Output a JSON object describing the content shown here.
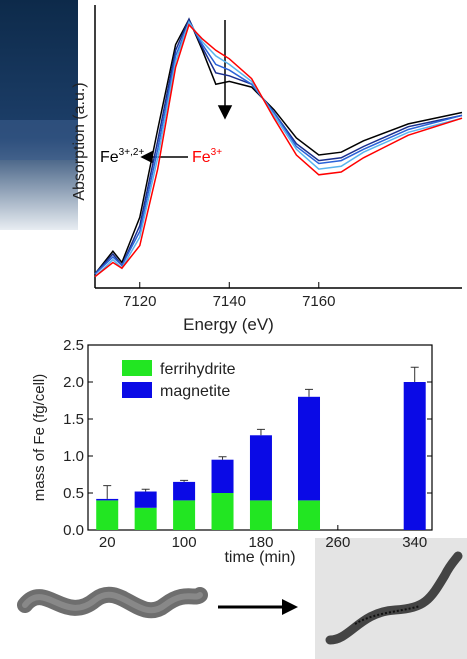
{
  "chart_data": [
    {
      "type": "line",
      "x_label": "Energy (eV)",
      "y_label": "Absorption (a.u.)",
      "x": [
        7110,
        7114,
        7116,
        7120,
        7124,
        7128,
        7131,
        7134,
        7137,
        7140,
        7145,
        7150,
        7155,
        7160,
        7165,
        7170,
        7180,
        7192
      ],
      "series": [
        {
          "color": "#000000",
          "values": [
            0.05,
            0.13,
            0.09,
            0.25,
            0.56,
            0.86,
            0.95,
            0.84,
            0.72,
            0.73,
            0.71,
            0.63,
            0.53,
            0.47,
            0.48,
            0.52,
            0.58,
            0.62
          ]
        },
        {
          "color": "#1a2f8f",
          "values": [
            0.05,
            0.12,
            0.08,
            0.22,
            0.52,
            0.84,
            0.95,
            0.85,
            0.76,
            0.75,
            0.72,
            0.62,
            0.51,
            0.45,
            0.46,
            0.5,
            0.57,
            0.61
          ]
        },
        {
          "color": "#2a62d8",
          "values": [
            0.05,
            0.11,
            0.08,
            0.2,
            0.49,
            0.82,
            0.94,
            0.86,
            0.79,
            0.77,
            0.72,
            0.62,
            0.5,
            0.44,
            0.45,
            0.49,
            0.56,
            0.61
          ]
        },
        {
          "color": "#5ab4ee",
          "values": [
            0.04,
            0.1,
            0.07,
            0.18,
            0.46,
            0.8,
            0.94,
            0.87,
            0.82,
            0.79,
            0.73,
            0.61,
            0.49,
            0.42,
            0.43,
            0.48,
            0.55,
            0.6
          ]
        },
        {
          "color": "#ff0000",
          "values": [
            0.04,
            0.09,
            0.07,
            0.15,
            0.42,
            0.78,
            0.93,
            0.88,
            0.84,
            0.81,
            0.74,
            0.6,
            0.47,
            0.4,
            0.41,
            0.46,
            0.54,
            0.6
          ]
        }
      ],
      "annotations": [
        {
          "text": "Fe",
          "sup": "3+,2+",
          "color": "#000000"
        },
        {
          "text": "Fe",
          "sup": "3+",
          "color": "#ff0000"
        }
      ],
      "xlim": [
        7110,
        7192
      ],
      "xticks": [
        7120,
        7140,
        7160
      ],
      "ylim": [
        0,
        1
      ]
    },
    {
      "type": "stacked_bar",
      "x_label": "time (min)",
      "y_label": "mass of Fe (fg/cell)",
      "x": [
        20,
        60,
        100,
        140,
        180,
        230,
        340
      ],
      "series": [
        {
          "name": "ferrihydrite",
          "color": "#22e622",
          "values": [
            0.4,
            0.3,
            0.4,
            0.5,
            0.4,
            0.4,
            0
          ]
        },
        {
          "name": "magnetite",
          "color": "#0a0ae6",
          "values": [
            0.02,
            0.22,
            0.25,
            0.45,
            0.88,
            1.4,
            2.0
          ],
          "errors": [
            0.18,
            0.03,
            0.02,
            0.04,
            0.08,
            0.1,
            0.2
          ]
        }
      ],
      "xlim": [
        0,
        358
      ],
      "xticks": [
        20,
        100,
        180,
        260,
        340
      ],
      "ylim": [
        0,
        2.5
      ],
      "yticks": [
        {
          "value": 0,
          "label": "0.0"
        },
        0.5,
        {
          "value": 1,
          "label": "1.0"
        },
        1.5,
        {
          "value": 2,
          "label": "2.0"
        },
        2.5
      ],
      "legend": "upper-left"
    }
  ]
}
